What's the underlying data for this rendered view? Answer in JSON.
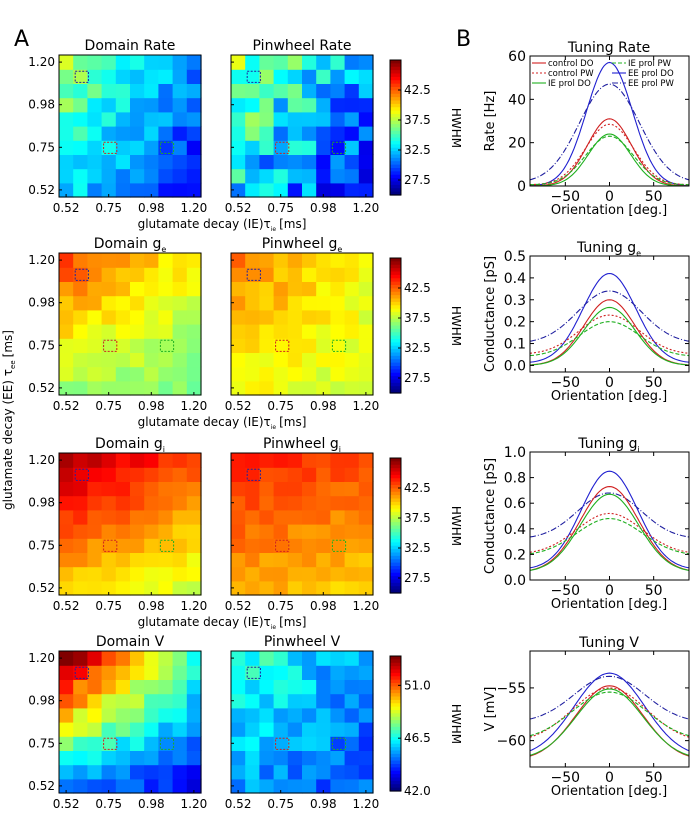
{
  "panel_labels": {
    "a": "A",
    "b": "B"
  },
  "colorbar_title": "HWHM",
  "y_axis_label": "glutamate decay (EE) τ",
  "y_axis_sub": "ee",
  "y_axis_unit": "[ms]",
  "x_axis_label": "glutamate decay (IE)τ",
  "x_axis_sub": "ie",
  "x_axis_unit": "[ms]",
  "heat_ticks": [
    "0.52",
    "0.75",
    "0.98",
    "1.20"
  ],
  "chart_data": {
    "heatmaps": [
      {
        "row": 0,
        "left_title": "Domain Rate",
        "right_title": "Pinwheel Rate",
        "colorbar_ticks": [
          "42.5",
          "37.5",
          "32.5",
          "27.5"
        ],
        "vmin": 25,
        "vmax": 47.5,
        "left": {
          "tl": 37,
          "tr": 31,
          "bl": 33,
          "br": 28,
          "vary": 1.5
        },
        "right": {
          "tl": 37,
          "tr": 31,
          "bl": 32,
          "br": 29,
          "vary": 3.0
        }
      },
      {
        "row": 1,
        "left_title": "Domain g",
        "left_sub": "e",
        "right_title": "Pinwheel g",
        "right_sub": "e",
        "colorbar_ticks": [
          "42.5",
          "37.5",
          "32.5",
          "27.5"
        ],
        "vmin": 25,
        "vmax": 47.5,
        "left": {
          "tl": 43,
          "tr": 39,
          "bl": 37,
          "br": 36,
          "vary": 0.8
        },
        "right": {
          "tl": 42,
          "tr": 39,
          "bl": 39,
          "br": 38,
          "vary": 0.8
        }
      },
      {
        "row": 2,
        "left_title": "Domain g",
        "left_sub": "i",
        "right_title": "Pinwheel g",
        "right_sub": "i",
        "colorbar_ticks": [
          "42.5",
          "37.5",
          "32.5",
          "27.5"
        ],
        "vmin": 25,
        "vmax": 47.5,
        "left": {
          "tl": 46.5,
          "tr": 43,
          "bl": 40,
          "br": 38,
          "vary": 0.6
        },
        "right": {
          "tl": 44,
          "tr": 43,
          "bl": 41,
          "br": 40,
          "vary": 0.6
        }
      },
      {
        "row": 3,
        "left_title": "Domain V",
        "left_sub": "",
        "right_title": "Pinwheel V",
        "right_sub": "",
        "colorbar_ticks": [
          "51.0",
          "46.5",
          "42.0"
        ],
        "vmin": 42,
        "vmax": 53.5,
        "left": {
          "tl": 53.5,
          "tr": 47,
          "bl": 45,
          "br": 43.5,
          "vary": 0.6
        },
        "right": {
          "tl": 47,
          "tr": 45,
          "bl": 45,
          "br": 44.5,
          "vary": 0.8
        }
      }
    ],
    "box_markers": [
      {
        "color": "#2020a0",
        "col": 1,
        "row": 8
      },
      {
        "color": "#d02020",
        "col": 3,
        "row": 3
      },
      {
        "color": "#20b020",
        "col": 7,
        "row": 3
      }
    ],
    "tuning": [
      {
        "title": "Tuning Rate",
        "title_sub": "",
        "ylabel": "Rate [Hz]",
        "xlabel": "Orientation [deg.]",
        "yticks": [
          "0",
          "20",
          "40",
          "60"
        ],
        "ylim": [
          0,
          60
        ],
        "xlim": [
          -90,
          90
        ],
        "xticks": [
          "−50",
          "0",
          "50"
        ],
        "legend": [
          {
            "label": "control DO",
            "color": "#d02020",
            "dash": ""
          },
          {
            "label": "IE prol PW",
            "color": "#20b020",
            "dash": "4,2"
          },
          {
            "label": "control PW",
            "color": "#d02020",
            "dash": "2,2"
          },
          {
            "label": "EE prol DO",
            "color": "#2020d0",
            "dash": ""
          },
          {
            "label": "IE prol DO",
            "color": "#20b020",
            "dash": ""
          },
          {
            "label": "EE prol PW",
            "color": "#2020a0",
            "dash": "6,2,1,2"
          }
        ],
        "curves": [
          {
            "color": "#2020d0",
            "dash": "",
            "peak": 57,
            "base": 0,
            "sigma": 26
          },
          {
            "color": "#2020a0",
            "dash": "6,2,1,2",
            "peak": 47,
            "base": 1.5,
            "sigma": 34
          },
          {
            "color": "#d02020",
            "dash": "",
            "peak": 31,
            "base": 0,
            "sigma": 25
          },
          {
            "color": "#d02020",
            "dash": "2,2",
            "peak": 28.5,
            "base": 0.5,
            "sigma": 27
          },
          {
            "color": "#20b020",
            "dash": "",
            "peak": 24,
            "base": 0,
            "sigma": 24
          },
          {
            "color": "#20b020",
            "dash": "4,2",
            "peak": 23,
            "base": 0.5,
            "sigma": 27
          }
        ]
      },
      {
        "title": "Tuning g",
        "title_sub": "e",
        "ylabel": "Conductance [pS]",
        "xlabel": "Orientation [deg.]",
        "yticks": [
          "0.0",
          "0.1",
          "0.2",
          "0.3",
          "0.4",
          "0.5"
        ],
        "ylim": [
          -0.03,
          0.5
        ],
        "xlim": [
          -90,
          90
        ],
        "xticks": [
          "−50",
          "0",
          "50"
        ],
        "curves": [
          {
            "color": "#2020d0",
            "dash": "",
            "peak": 0.42,
            "base": 0.01,
            "sigma": 30
          },
          {
            "color": "#2020a0",
            "dash": "6,2,1,2",
            "peak": 0.34,
            "base": 0.1,
            "sigma": 36
          },
          {
            "color": "#d02020",
            "dash": "",
            "peak": 0.3,
            "base": 0.0,
            "sigma": 29
          },
          {
            "color": "#d02020",
            "dash": "2,2",
            "peak": 0.23,
            "base": 0.05,
            "sigma": 34
          },
          {
            "color": "#20b020",
            "dash": "",
            "peak": 0.265,
            "base": 0.0,
            "sigma": 29
          },
          {
            "color": "#20b020",
            "dash": "4,2",
            "peak": 0.2,
            "base": 0.04,
            "sigma": 34
          }
        ]
      },
      {
        "title": "Tuning g",
        "title_sub": "i",
        "ylabel": "Conductance [pS]",
        "xlabel": "Orientation [deg.]",
        "yticks": [
          "0.0",
          "0.2",
          "0.4",
          "0.6",
          "0.8",
          "1.0"
        ],
        "ylim": [
          0,
          1.0
        ],
        "xlim": [
          -90,
          90
        ],
        "xticks": [
          "−50",
          "0",
          "50"
        ],
        "curves": [
          {
            "color": "#2020d0",
            "dash": "",
            "peak": 0.85,
            "base": 0.08,
            "sigma": 32
          },
          {
            "color": "#2020a0",
            "dash": "6,2,1,2",
            "peak": 0.68,
            "base": 0.32,
            "sigma": 36
          },
          {
            "color": "#d02020",
            "dash": "",
            "peak": 0.73,
            "base": 0.06,
            "sigma": 33
          },
          {
            "color": "#d02020",
            "dash": "2,2",
            "peak": 0.52,
            "base": 0.2,
            "sigma": 37
          },
          {
            "color": "#20b020",
            "dash": "",
            "peak": 0.67,
            "base": 0.06,
            "sigma": 33
          },
          {
            "color": "#20b020",
            "dash": "4,2",
            "peak": 0.48,
            "base": 0.19,
            "sigma": 37
          }
        ]
      },
      {
        "title": "Tuning V",
        "title_sub": "",
        "ylabel": "V [mV]",
        "xlabel": "Orientation [deg.]",
        "yticks": [
          "−55",
          "−60"
        ],
        "ytick_values": [
          -55,
          -60
        ],
        "ylim": [
          -62.5,
          -51.5
        ],
        "xlim": [
          -90,
          90
        ],
        "xticks": [
          "−50",
          "0",
          "50"
        ],
        "curves": [
          {
            "color": "#2020d0",
            "dash": "",
            "peak": -53.6,
            "base": -61.6,
            "sigma": 40
          },
          {
            "color": "#2020a0",
            "dash": "6,2,1,2",
            "peak": -53.9,
            "base": -58.3,
            "sigma": 40
          },
          {
            "color": "#d02020",
            "dash": "",
            "peak": -54.8,
            "base": -61.9,
            "sigma": 38
          },
          {
            "color": "#d02020",
            "dash": "2,2",
            "peak": -55.0,
            "base": -60.2,
            "sigma": 42
          },
          {
            "color": "#20b020",
            "dash": "",
            "peak": -55.1,
            "base": -61.8,
            "sigma": 38
          },
          {
            "color": "#20b020",
            "dash": "4,2",
            "peak": -55.4,
            "base": -60.0,
            "sigma": 42
          }
        ]
      }
    ]
  }
}
